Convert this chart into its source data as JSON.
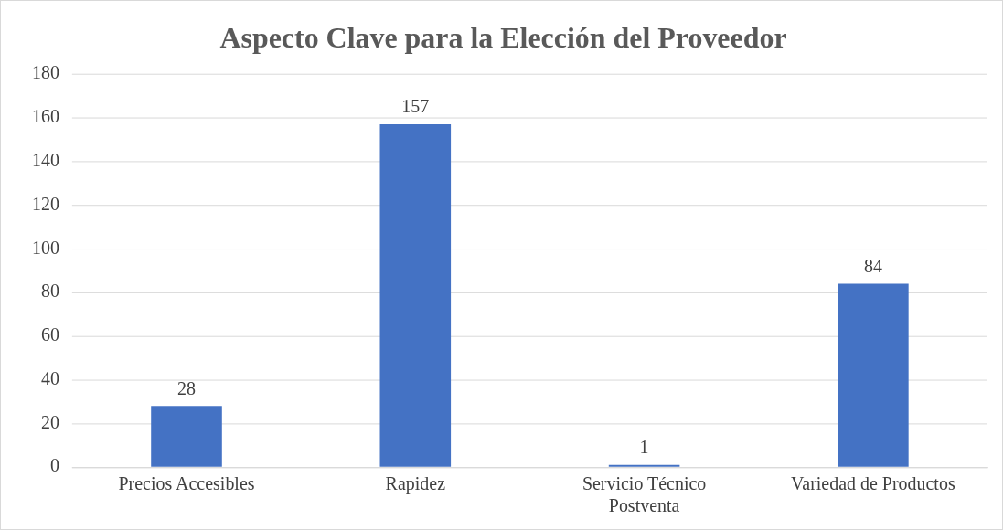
{
  "chart_data": {
    "type": "bar",
    "title": "Aspecto Clave para la Elección del Proveedor",
    "categories": [
      "Precios Accesibles",
      "Rapidez",
      "Servicio Técnico Postventa",
      "Variedad de Productos"
    ],
    "values": [
      28,
      157,
      1,
      84
    ],
    "color": "#4472c4",
    "ylim": [
      0,
      180
    ],
    "yticks": [
      0,
      20,
      40,
      60,
      80,
      100,
      120,
      140,
      160,
      180
    ],
    "grid": "y",
    "legend": false,
    "data_labels": true
  }
}
